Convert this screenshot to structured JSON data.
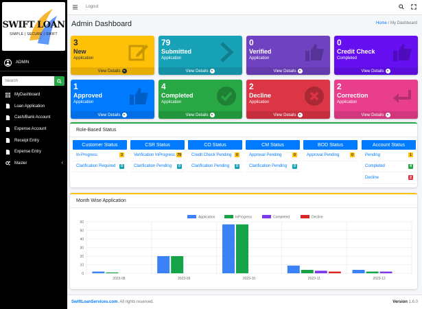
{
  "brand": {
    "name": "SWIFT LOAN",
    "tagline": "SIMPLE | SECURE | SWIFT"
  },
  "user": {
    "name": "ADMIN"
  },
  "sidebar_search": {
    "placeholder": "Search"
  },
  "sidebar": {
    "items": [
      {
        "label": "MyDashboard",
        "icon": "dashboard-grid-icon"
      },
      {
        "label": "Loan Application",
        "icon": "document-icon"
      },
      {
        "label": "Cash/Bank Account",
        "icon": "document-icon"
      },
      {
        "label": "Expense Account",
        "icon": "document-icon"
      },
      {
        "label": "Receipt Entry",
        "icon": "document-icon"
      },
      {
        "label": "Expense Entry",
        "icon": "document-icon"
      },
      {
        "label": "Master",
        "icon": "gears-icon",
        "has_chevron": true
      }
    ]
  },
  "topbar": {
    "logout": "Logout"
  },
  "page": {
    "title": "Admin Dashboard",
    "breadcrumb_home": "Home",
    "breadcrumb_sep": " / ",
    "breadcrumb_current": "My Dashboard"
  },
  "boxes": [
    {
      "count": "3",
      "label": "New",
      "sub": "Application",
      "footer": "View Details",
      "color": "#ffc107",
      "icon": "edit-icon"
    },
    {
      "count": "79",
      "label": "Submitted",
      "sub": "Application",
      "footer": "View Details",
      "color": "#17a2b8",
      "icon": "chevron-right-icon"
    },
    {
      "count": "0",
      "label": "Verified",
      "sub": "Application",
      "footer": "View Details",
      "color": "#6f42c1",
      "icon": "thumbs-up-icon"
    },
    {
      "count": "0",
      "label": "Credit Check",
      "sub": "Completed",
      "footer": "View Details",
      "color": "#6610f2",
      "icon": "thumbs-up-icon"
    },
    {
      "count": "1",
      "label": "Approved",
      "sub": "Application",
      "footer": "View Details",
      "color": "#007bff",
      "icon": "thumbs-up-icon"
    },
    {
      "count": "4",
      "label": "Completed",
      "sub": "Application",
      "footer": "View Details",
      "color": "#28a745",
      "icon": "check-circle-icon"
    },
    {
      "count": "2",
      "label": "Decline",
      "sub": "Application",
      "footer": "View Details",
      "color": "#dc3545",
      "icon": "times-circle-icon"
    },
    {
      "count": "2",
      "label": "Correction",
      "sub": "Application",
      "footer": "View Details",
      "color": "#e83e8c",
      "icon": "return-arrow-icon"
    }
  ],
  "role_status": {
    "title": "Role-Based Status",
    "columns": [
      {
        "header": "Customer Status",
        "rows": [
          {
            "label": "In-Progress",
            "count": "3",
            "badge": "warning"
          },
          {
            "label": "Clarification Required",
            "count": "0",
            "badge": "info"
          }
        ]
      },
      {
        "header": "CSR Status",
        "rows": [
          {
            "label": "Verification InProgress",
            "count": "79",
            "badge": "warning"
          },
          {
            "label": "Clarification Pending",
            "count": "0",
            "badge": "info"
          }
        ]
      },
      {
        "header": "CO Status",
        "rows": [
          {
            "label": "Credit Check Pending",
            "count": "0",
            "badge": "warning"
          },
          {
            "label": "Clarification Pending",
            "count": "0",
            "badge": "info"
          }
        ]
      },
      {
        "header": "CM Status",
        "rows": [
          {
            "label": "Approval Pending",
            "count": "0",
            "badge": "warning"
          },
          {
            "label": "Clarification Pending",
            "count": "0",
            "badge": "info"
          }
        ]
      },
      {
        "header": "BOD Status",
        "rows": [
          {
            "label": "Approval Pending",
            "count": "0",
            "badge": "warning"
          }
        ]
      },
      {
        "header": "Account Status",
        "rows": [
          {
            "label": "Pending",
            "count": "1",
            "badge": "warning"
          },
          {
            "label": "Completed",
            "count": "4",
            "badge": "success"
          },
          {
            "label": "Decline",
            "count": "2",
            "badge": "danger"
          }
        ]
      }
    ]
  },
  "badge_colors": {
    "warning": "#ffc107",
    "info": "#17a2b8",
    "success": "#28a745",
    "danger": "#dc3545"
  },
  "chart_section": {
    "title": "Month Wise Application"
  },
  "chart_data": {
    "type": "bar",
    "categories": [
      "2023-08",
      "2023-09",
      "2023-10",
      "2023-11",
      "2023-12"
    ],
    "series": [
      {
        "name": "Application",
        "color": "#3b82f6",
        "values": [
          2,
          20,
          57,
          9,
          4
        ]
      },
      {
        "name": "InProgress",
        "color": "#16a34a",
        "values": [
          1,
          20,
          57,
          4,
          2
        ]
      },
      {
        "name": "Completed",
        "color": "#7c3aed",
        "values": [
          0,
          0,
          0,
          3,
          2
        ]
      },
      {
        "name": "Decline",
        "color": "#dc2626",
        "values": [
          0,
          0,
          0,
          2,
          0
        ]
      }
    ],
    "ylim": [
      0,
      60
    ],
    "yticks": [
      0,
      10,
      20,
      30,
      40,
      50,
      60
    ],
    "legend": "top-center",
    "grid": true
  },
  "footer": {
    "site": "SwiftLoanServices.com",
    "rights": ". All rights reserved.",
    "version_label": "Version",
    "version": "1.6.0"
  }
}
